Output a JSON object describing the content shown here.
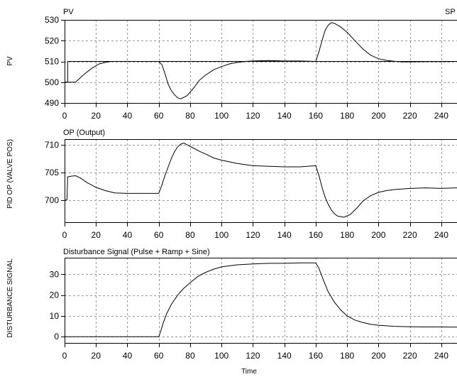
{
  "chart_data": [
    {
      "type": "line",
      "title": "PV",
      "title_right": "SP",
      "ylabel": "PV",
      "xlabel": "",
      "xlim": [
        0,
        250
      ],
      "ylim": [
        490,
        530
      ],
      "xticks": [
        0,
        20,
        40,
        60,
        80,
        100,
        120,
        140,
        160,
        180,
        200,
        220,
        240
      ],
      "yticks": [
        490,
        500,
        510,
        520,
        530
      ],
      "grid": true,
      "series": [
        {
          "name": "SP",
          "x": [
            0,
            2,
            2,
            250
          ],
          "y": [
            500,
            500,
            510,
            510
          ]
        },
        {
          "name": "PV",
          "x": [
            0,
            7,
            12,
            17,
            22,
            27,
            30,
            40,
            50,
            60,
            62,
            64,
            66,
            68,
            70,
            72,
            74,
            78,
            82,
            86,
            90,
            95,
            100,
            105,
            110,
            115,
            120,
            130,
            140,
            150,
            160,
            162,
            164,
            166,
            168,
            170,
            172,
            176,
            180,
            185,
            190,
            195,
            200,
            205,
            210,
            215,
            220,
            230,
            240,
            250
          ],
          "y": [
            500,
            500,
            503.5,
            506.5,
            508.8,
            509.7,
            510,
            510,
            510,
            510,
            508.5,
            504,
            499,
            496,
            494,
            492.5,
            492,
            493.5,
            497,
            501,
            503.5,
            506,
            507.5,
            508.8,
            509.5,
            510,
            510.2,
            510.4,
            510.2,
            510.2,
            510,
            514.5,
            520,
            525,
            527.5,
            528.7,
            528.3,
            526.5,
            524,
            520,
            516,
            513,
            511.3,
            510.5,
            510.1,
            509.8,
            509.8,
            509.9,
            509.9,
            510
          ]
        }
      ]
    },
    {
      "type": "line",
      "title": "OP (Output)",
      "ylabel": "PID OP (VALVE POS)",
      "xlabel": "",
      "xlim": [
        0,
        250
      ],
      "ylim": [
        696,
        711
      ],
      "xticks": [
        0,
        20,
        40,
        60,
        80,
        100,
        120,
        140,
        160,
        180,
        200,
        220,
        240
      ],
      "yticks": [
        700,
        705,
        710
      ],
      "grid": true,
      "series": [
        {
          "name": "OP",
          "x": [
            0,
            1.5,
            2,
            4,
            7,
            10,
            14,
            20,
            26,
            32,
            40,
            50,
            60,
            62,
            64,
            66,
            68,
            70,
            72,
            74,
            76,
            78,
            82,
            86,
            90,
            95,
            100,
            110,
            120,
            130,
            140,
            150,
            160,
            162,
            164,
            166,
            168,
            170,
            172,
            174,
            178,
            182,
            186,
            190,
            195,
            200,
            205,
            210,
            220,
            230,
            240,
            250
          ],
          "y": [
            700,
            700,
            704.2,
            704.3,
            704.4,
            704,
            703.2,
            702.3,
            701.7,
            701.3,
            701.2,
            701.2,
            701.2,
            702.7,
            704.5,
            706,
            707.5,
            708.7,
            709.6,
            710.1,
            710.3,
            710,
            709.4,
            708.8,
            708.3,
            707.6,
            707.2,
            706.6,
            706.2,
            706.1,
            706,
            706,
            706.2,
            704.5,
            702.3,
            700.5,
            699.2,
            698.2,
            697.5,
            697.1,
            696.9,
            697.4,
            698.5,
            699.8,
            700.8,
            701.4,
            701.7,
            701.9,
            702.1,
            702.2,
            702.1,
            702.2
          ]
        }
      ]
    },
    {
      "type": "line",
      "title": "Disturbance Signal (Pulse + Ramp + Sine)",
      "ylabel": "DISTURBANCE SIGNAL",
      "xlabel": "Time",
      "xlim": [
        0,
        250
      ],
      "ylim": [
        -3,
        38
      ],
      "xticks": [
        0,
        20,
        40,
        60,
        80,
        100,
        120,
        140,
        160,
        180,
        200,
        220,
        240
      ],
      "yticks": [
        0,
        10,
        20,
        30
      ],
      "grid": true,
      "series": [
        {
          "name": "Disturbance",
          "x": [
            0,
            30,
            60,
            61,
            63,
            65,
            68,
            72,
            76,
            80,
            85,
            90,
            95,
            100,
            110,
            120,
            130,
            140,
            150,
            160,
            162,
            165,
            168,
            172,
            176,
            180,
            185,
            190,
            195,
            200,
            210,
            220,
            230,
            240,
            250
          ],
          "y": [
            0,
            0,
            0,
            2,
            7,
            11,
            15.5,
            20,
            23.3,
            26,
            29,
            31,
            32.5,
            33.6,
            34.6,
            35,
            35.3,
            35.3,
            35.5,
            35.5,
            33,
            27,
            21.5,
            16.5,
            12.8,
            10,
            8,
            6.8,
            6,
            5.5,
            5,
            4.8,
            4.7,
            4.7,
            4.6
          ]
        }
      ]
    }
  ]
}
